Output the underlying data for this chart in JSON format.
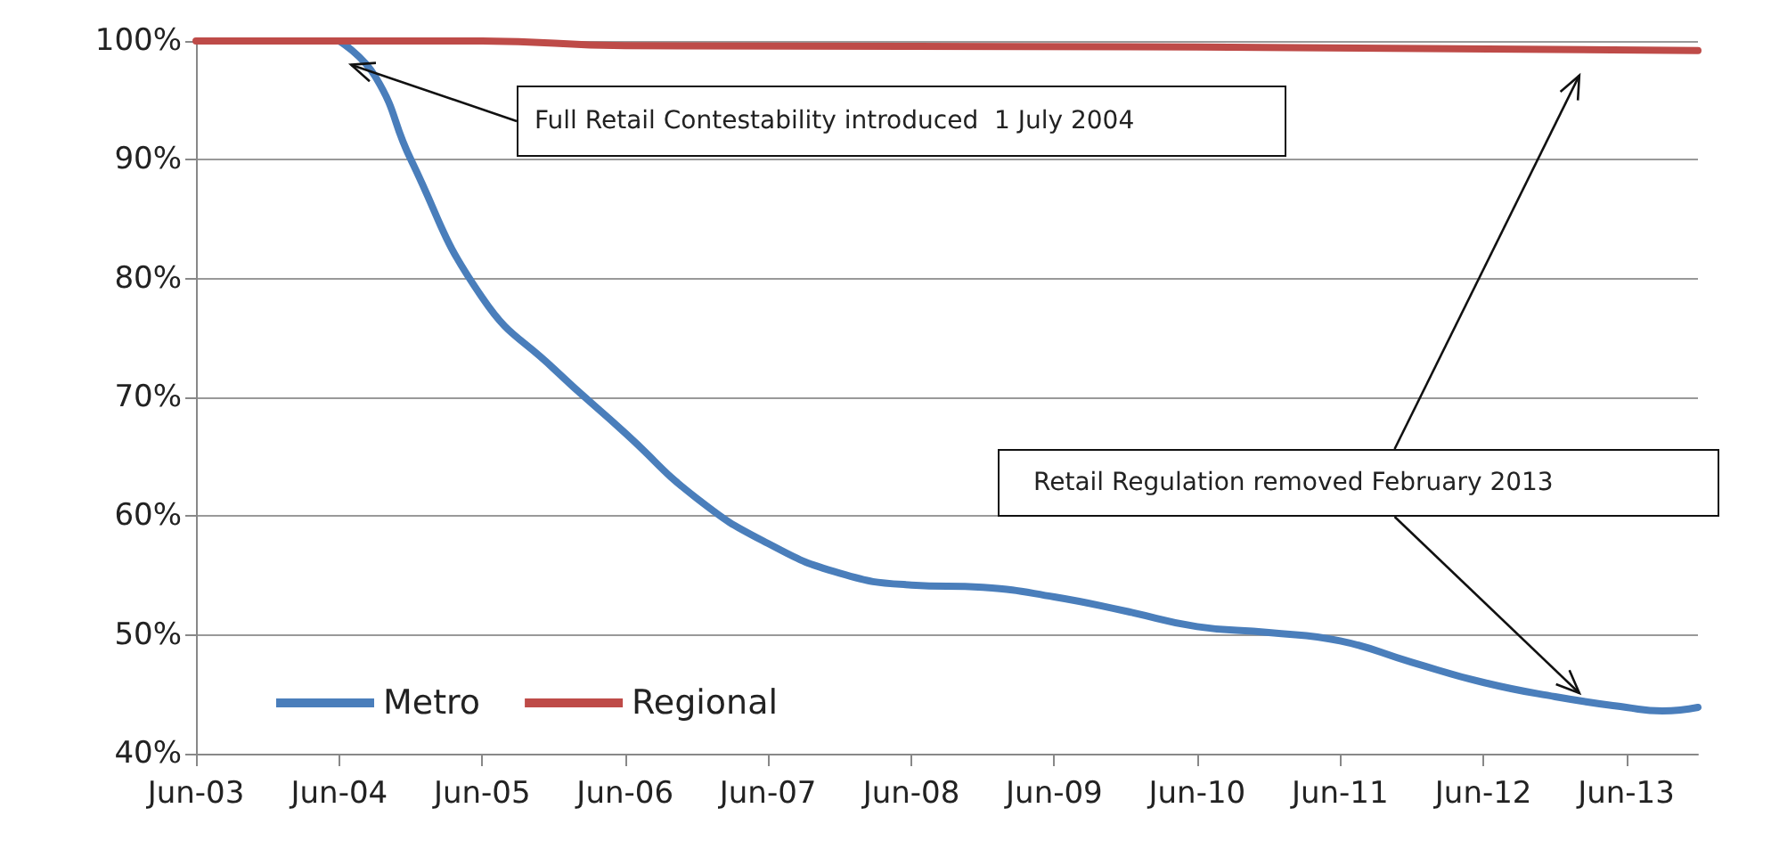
{
  "chart_data": {
    "type": "line",
    "x": [
      "2004-06",
      "2004-09",
      "2004-12",
      "2005-06",
      "2005-12",
      "2006-06",
      "2006-12",
      "2007-06",
      "2007-12",
      "2008-06",
      "2008-12",
      "2009-06",
      "2009-12",
      "2010-06",
      "2010-12",
      "2011-06",
      "2011-12",
      "2012-06",
      "2012-12",
      "2013-06",
      "2013-09",
      "2013-12"
    ],
    "series": [
      {
        "name": "Metro",
        "color": "#4a7ebb",
        "values": [
          100,
          97,
          90,
          78.4,
          72.4,
          67,
          61.5,
          57.7,
          55.2,
          54.2,
          54,
          53.2,
          52,
          50.7,
          50.2,
          49.5,
          47.7,
          46,
          44.8,
          43.9,
          43.6,
          43.9
        ]
      },
      {
        "name": "Regional",
        "color": "#be4b48",
        "x": [
          "2003-06",
          "2005-06",
          "2006-06",
          "2010-06",
          "2013-12"
        ],
        "values": [
          100,
          100,
          99.6,
          99.5,
          99.2
        ]
      }
    ],
    "xlim": [
      "2003-06",
      "2013-12"
    ],
    "xticks": [
      {
        "value": "2003-06",
        "label": "Jun-03"
      },
      {
        "value": "2004-06",
        "label": "Jun-04"
      },
      {
        "value": "2005-06",
        "label": "Jun-05"
      },
      {
        "value": "2006-06",
        "label": "Jun-06"
      },
      {
        "value": "2007-06",
        "label": "Jun-07"
      },
      {
        "value": "2008-06",
        "label": "Jun-08"
      },
      {
        "value": "2009-06",
        "label": "Jun-09"
      },
      {
        "value": "2010-06",
        "label": "Jun-10"
      },
      {
        "value": "2011-06",
        "label": "Jun-11"
      },
      {
        "value": "2012-06",
        "label": "Jun-12"
      },
      {
        "value": "2013-06",
        "label": "Jun-13"
      }
    ],
    "ylim": [
      40,
      100
    ],
    "yticks": [
      {
        "value": 40,
        "label": "40%"
      },
      {
        "value": 50,
        "label": "50%"
      },
      {
        "value": 60,
        "label": "60%"
      },
      {
        "value": 70,
        "label": "70%"
      },
      {
        "value": 80,
        "label": "80%"
      },
      {
        "value": 90,
        "label": "90%"
      },
      {
        "value": 100,
        "label": "100%"
      }
    ],
    "annotations": [
      {
        "text": "Full Retail Contestability introduced  1 July 2004",
        "x": "2004-07",
        "y": 98
      },
      {
        "text": "Retail Regulation removed February 2013",
        "x": "2013-02",
        "y": 44.5
      }
    ],
    "grid": "y",
    "legend": "bottom left",
    "marker": "none",
    "line_style": "solid"
  }
}
